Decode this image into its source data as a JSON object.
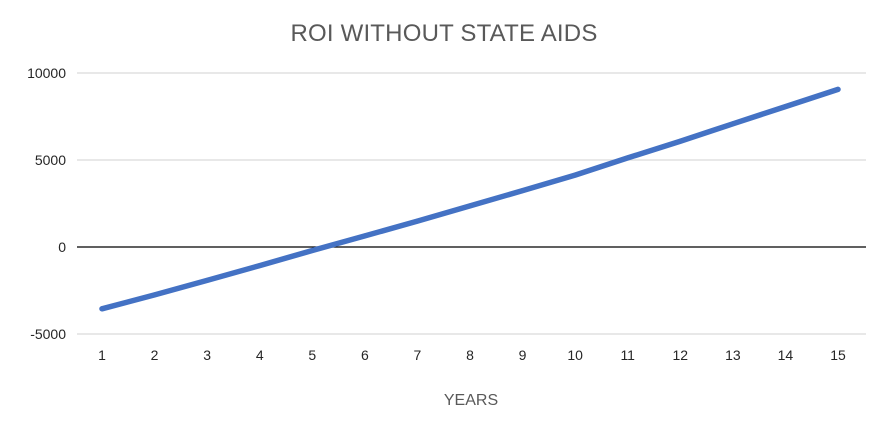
{
  "chart_data": {
    "type": "line",
    "title": "ROI WITHOUT STATE AIDS",
    "xlabel": "YEARS",
    "ylabel": "",
    "categories": [
      "1",
      "2",
      "3",
      "4",
      "5",
      "6",
      "7",
      "8",
      "9",
      "10",
      "11",
      "12",
      "13",
      "14",
      "15"
    ],
    "series": [
      {
        "values": [
          -3550,
          -2750,
          -1920,
          -1070,
          -200,
          640,
          1490,
          2360,
          3240,
          4130,
          5120,
          6080,
          7080,
          8070,
          9060
        ],
        "color": "#4472C4"
      }
    ],
    "ylim": [
      -5000,
      10000
    ],
    "yticks": [
      10000,
      5000,
      0,
      -5000
    ],
    "ytick_labels": [
      "10000",
      "5000",
      "0",
      "-5000"
    ],
    "grid": true,
    "legend": "none",
    "colors": {
      "gridline": "#D9D9D9",
      "zero_line": "#000000",
      "title_text": "#595959",
      "tick_text": "#262626"
    }
  }
}
